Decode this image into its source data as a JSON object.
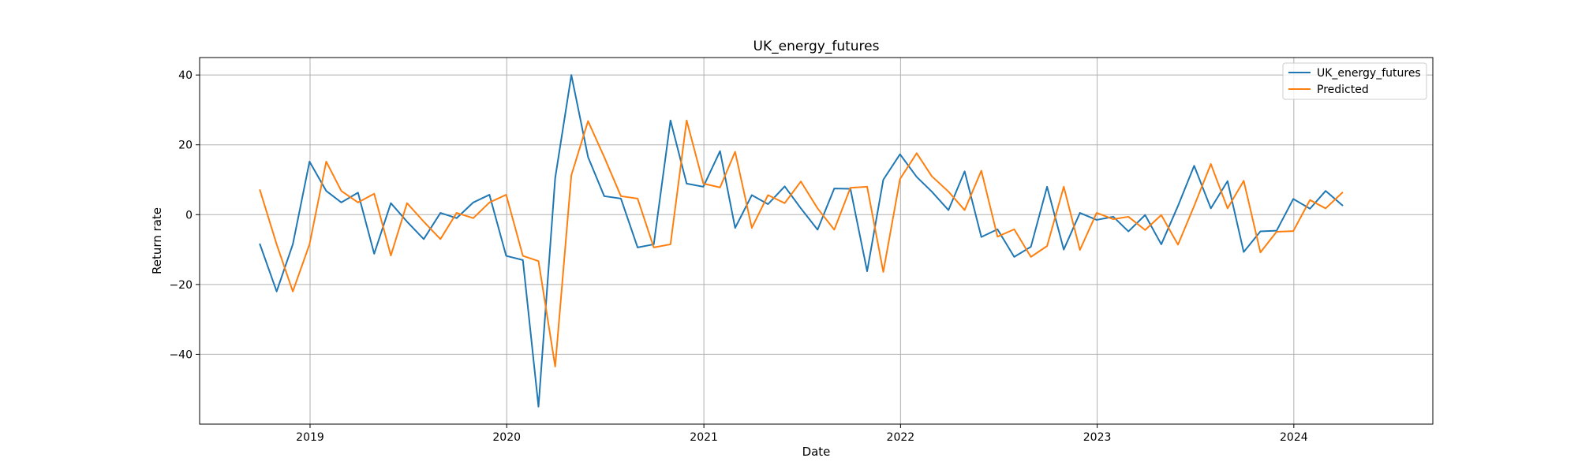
{
  "chart_data": {
    "type": "line",
    "title": "UK_energy_futures",
    "xlabel": "Date",
    "ylabel": "Return rate",
    "x_axis_type": "date",
    "xlim": [
      "2018-06-10",
      "2024-09-15"
    ],
    "ylim": [
      -60,
      45
    ],
    "x_ticks": [
      {
        "date": "2019-01-01",
        "label": "2019"
      },
      {
        "date": "2020-01-01",
        "label": "2020"
      },
      {
        "date": "2021-01-01",
        "label": "2021"
      },
      {
        "date": "2022-01-01",
        "label": "2022"
      },
      {
        "date": "2023-01-01",
        "label": "2023"
      },
      {
        "date": "2024-01-01",
        "label": "2024"
      }
    ],
    "y_ticks": [
      {
        "value": 40,
        "label": "40"
      },
      {
        "value": 20,
        "label": "20"
      },
      {
        "value": 0,
        "label": "0"
      },
      {
        "value": -20,
        "label": "−20"
      },
      {
        "value": -40,
        "label": "−40"
      }
    ],
    "grid": true,
    "legend_position": "top-right",
    "dates": [
      "2018-09-30",
      "2018-10-31",
      "2018-11-30",
      "2018-12-31",
      "2019-01-31",
      "2019-02-28",
      "2019-03-31",
      "2019-04-30",
      "2019-05-31",
      "2019-06-30",
      "2019-07-31",
      "2019-08-31",
      "2019-09-30",
      "2019-10-31",
      "2019-11-30",
      "2019-12-31",
      "2020-01-31",
      "2020-02-29",
      "2020-03-31",
      "2020-04-30",
      "2020-05-31",
      "2020-06-30",
      "2020-07-31",
      "2020-08-31",
      "2020-09-30",
      "2020-10-31",
      "2020-11-30",
      "2020-12-31",
      "2021-01-31",
      "2021-02-28",
      "2021-03-31",
      "2021-04-30",
      "2021-05-31",
      "2021-06-30",
      "2021-07-31",
      "2021-08-31",
      "2021-09-30",
      "2021-10-31",
      "2021-11-30",
      "2021-12-31",
      "2022-01-31",
      "2022-02-28",
      "2022-03-31",
      "2022-04-30",
      "2022-05-31",
      "2022-06-30",
      "2022-07-31",
      "2022-08-31",
      "2022-09-30",
      "2022-10-31",
      "2022-11-30",
      "2022-12-31",
      "2023-01-31",
      "2023-02-28",
      "2023-03-31",
      "2023-04-30",
      "2023-05-31",
      "2023-06-30",
      "2023-07-31",
      "2023-08-31",
      "2023-09-30",
      "2023-10-31",
      "2023-11-30",
      "2023-12-31",
      "2024-01-31",
      "2024-02-29",
      "2024-03-31"
    ],
    "series": [
      {
        "name": "UK_energy_futures",
        "color": "#1f77b4",
        "values": [
          -8.5,
          -22.0,
          -8.5,
          15.2,
          6.8,
          3.5,
          6.3,
          -11.2,
          3.3,
          -2.0,
          -7.0,
          0.5,
          -1.0,
          3.5,
          5.7,
          -11.8,
          -13.0,
          -55.0,
          10.5,
          40.0,
          16.5,
          5.3,
          4.6,
          -9.4,
          -8.5,
          27.0,
          8.9,
          8.0,
          18.2,
          -3.8,
          5.6,
          3.0,
          8.1,
          1.8,
          -4.3,
          7.5,
          7.4,
          -16.2,
          10.0,
          17.3,
          10.8,
          6.6,
          1.3,
          12.4,
          -6.4,
          -4.2,
          -12.1,
          -9.2,
          8.0,
          -10.0,
          0.5,
          -1.5,
          -0.6,
          -4.8,
          -0.1,
          -8.5,
          2.5,
          14.0,
          1.8,
          9.6,
          -10.7,
          -4.8,
          -4.6,
          4.5,
          1.7,
          6.8,
          2.7
        ]
      },
      {
        "name": "Predicted",
        "color": "#ff7f0e",
        "values": [
          7.0,
          -8.5,
          -22.0,
          -8.5,
          15.2,
          6.8,
          3.5,
          6.0,
          -11.7,
          3.3,
          -2.0,
          -7.0,
          0.5,
          -1.0,
          3.5,
          5.7,
          -11.8,
          -13.3,
          -43.5,
          11.3,
          26.8,
          16.5,
          5.3,
          4.6,
          -9.4,
          -8.5,
          27.0,
          8.9,
          7.8,
          18.0,
          -3.8,
          5.6,
          3.3,
          9.5,
          1.8,
          -4.3,
          7.7,
          8.0,
          -16.4,
          10.2,
          17.6,
          11.0,
          6.6,
          1.3,
          12.6,
          -6.3,
          -4.2,
          -12.1,
          -9.0,
          8.0,
          -10.1,
          0.5,
          -1.3,
          -0.6,
          -4.4,
          -0.1,
          -8.6,
          2.5,
          14.5,
          1.8,
          9.7,
          -10.8,
          -4.9,
          -4.7,
          4.2,
          1.8,
          6.3
        ]
      }
    ]
  }
}
